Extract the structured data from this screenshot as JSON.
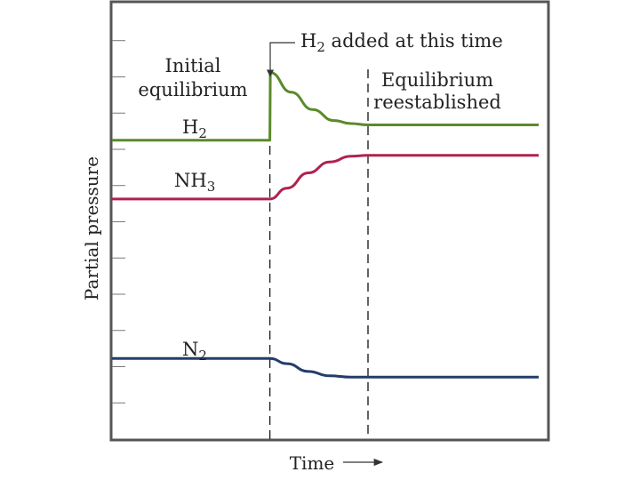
{
  "chart_data": {
    "type": "line",
    "xlabel": "Time",
    "ylabel": "Partial pressure",
    "xlim": [
      0,
      100
    ],
    "ylim": [
      0,
      100
    ],
    "grid": false,
    "events": [
      {
        "x": 37,
        "label": "H₂ added at this time"
      },
      {
        "x": 60,
        "label": "Equilibrium reestablished"
      }
    ],
    "annotations": [
      "Initial",
      "equilibrium",
      "Equilibrium",
      "reestablished"
    ],
    "series": [
      {
        "name": "H",
        "subscript": "2",
        "color": "#5a8a2a",
        "x": [
          0,
          37,
          37.1,
          42,
          47,
          52,
          56,
          60,
          100
        ],
        "y": [
          68.5,
          68.5,
          84,
          79.5,
          75.5,
          73,
          72.3,
          72,
          72
        ]
      },
      {
        "name": "NH",
        "subscript": "3",
        "color": "#b0224e",
        "x": [
          0,
          37,
          41,
          46,
          51,
          56,
          60,
          100
        ],
        "y": [
          55,
          55,
          57.5,
          61,
          63.5,
          64.8,
          65,
          65
        ]
      },
      {
        "name": "N",
        "subscript": "2",
        "color": "#233c6b",
        "x": [
          0,
          37,
          41,
          46,
          51,
          56,
          60,
          100
        ],
        "y": [
          18.5,
          18.5,
          17.3,
          15.5,
          14.5,
          14.2,
          14.2,
          14.2
        ]
      }
    ]
  }
}
